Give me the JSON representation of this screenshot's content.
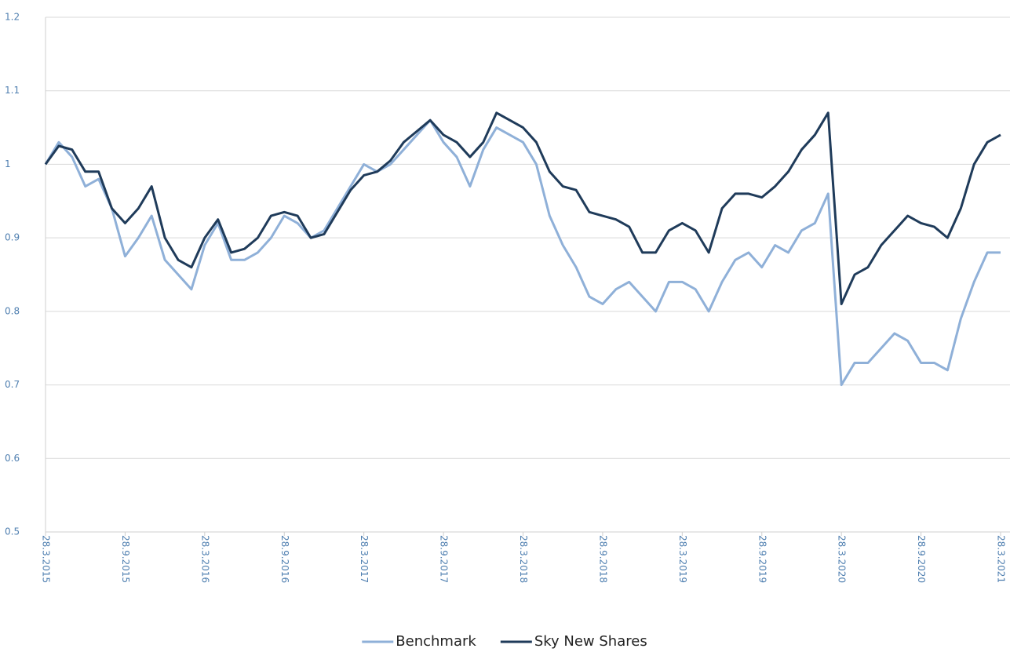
{
  "chart_data": {
    "type": "line",
    "categories": [
      "28.3.2015",
      null,
      null,
      null,
      null,
      null,
      "28.9.2015",
      null,
      null,
      null,
      null,
      null,
      "28.3.2016",
      null,
      null,
      null,
      null,
      null,
      "28.9.2016",
      null,
      null,
      null,
      null,
      null,
      "28.3.2017",
      null,
      null,
      null,
      null,
      null,
      "28.9.2017",
      null,
      null,
      null,
      null,
      null,
      "28.3.2018",
      null,
      null,
      null,
      null,
      null,
      "28.9.2018",
      null,
      null,
      null,
      null,
      null,
      "28.3.2019",
      null,
      null,
      null,
      null,
      null,
      "28.9.2019",
      null,
      null,
      null,
      null,
      null,
      "28.3.2020",
      null,
      null,
      null,
      null,
      null,
      "28.9.2020",
      null,
      null,
      null,
      null,
      null,
      "28.3.2021"
    ],
    "series": [
      {
        "name": "Benchmark",
        "color": "#8fb0d8",
        "values": [
          1.0,
          1.03,
          1.01,
          0.97,
          0.98,
          0.94,
          0.875,
          0.9,
          0.93,
          0.87,
          0.85,
          0.83,
          0.89,
          0.92,
          0.87,
          0.87,
          0.88,
          0.9,
          0.93,
          0.92,
          0.9,
          0.91,
          0.94,
          0.97,
          1.0,
          0.99,
          1.0,
          1.02,
          1.04,
          1.06,
          1.03,
          1.01,
          0.97,
          1.02,
          1.05,
          1.04,
          1.03,
          1.0,
          0.93,
          0.89,
          0.86,
          0.82,
          0.81,
          0.83,
          0.84,
          0.82,
          0.8,
          0.84,
          0.84,
          0.83,
          0.8,
          0.84,
          0.87,
          0.88,
          0.86,
          0.89,
          0.88,
          0.91,
          0.92,
          0.96,
          0.7,
          0.73,
          0.73,
          0.75,
          0.77,
          0.76,
          0.73,
          0.73,
          0.72,
          0.79,
          0.84,
          0.88,
          0.88
        ]
      },
      {
        "name": "Sky New Shares",
        "color": "#1f3b5a",
        "values": [
          1.0,
          1.025,
          1.02,
          0.99,
          0.99,
          0.94,
          0.92,
          0.94,
          0.97,
          0.9,
          0.87,
          0.86,
          0.9,
          0.925,
          0.88,
          0.885,
          0.9,
          0.93,
          0.935,
          0.93,
          0.9,
          0.905,
          0.935,
          0.965,
          0.985,
          0.99,
          1.005,
          1.03,
          1.045,
          1.06,
          1.04,
          1.03,
          1.01,
          1.03,
          1.07,
          1.06,
          1.05,
          1.03,
          0.99,
          0.97,
          0.965,
          0.935,
          0.93,
          0.925,
          0.915,
          0.88,
          0.88,
          0.91,
          0.92,
          0.91,
          0.88,
          0.94,
          0.96,
          0.96,
          0.955,
          0.97,
          0.99,
          1.02,
          1.04,
          1.07,
          0.81,
          0.85,
          0.86,
          0.89,
          0.91,
          0.93,
          0.92,
          0.915,
          0.9,
          0.94,
          1.0,
          1.03,
          1.04
        ]
      }
    ],
    "ylim": [
      0.5,
      1.2
    ],
    "yticks": [
      0.5,
      0.6,
      0.7,
      0.8,
      0.9,
      1,
      1.1,
      1.2
    ],
    "grid": true,
    "legend": "bottom"
  }
}
